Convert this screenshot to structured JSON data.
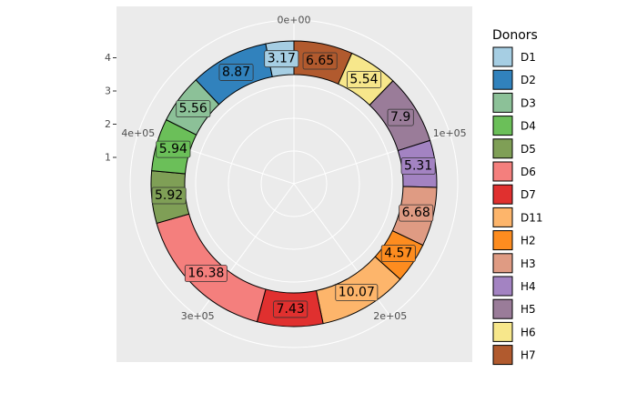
{
  "chart_data": {
    "type": "pie",
    "variant": "donut",
    "coord": "polar",
    "legend_title": "Donors",
    "legend_position": "right",
    "x_ticks": [
      "0e+00",
      "1e+05",
      "2e+05",
      "3e+05",
      "4e+05"
    ],
    "y_ticks": [
      "1",
      "2",
      "3",
      "4"
    ],
    "grid": true,
    "slices": [
      {
        "name": "D1",
        "value": 3.17,
        "label": "3.17",
        "color": "#A6CEE3"
      },
      {
        "name": "D2",
        "value": 8.87,
        "label": "8.87",
        "color": "#3182BD"
      },
      {
        "name": "D3",
        "value": 5.56,
        "label": "5.56",
        "color": "#8CC198"
      },
      {
        "name": "D4",
        "value": 5.94,
        "label": "5.94",
        "color": "#6BBF59"
      },
      {
        "name": "D5",
        "value": 5.92,
        "label": "5.92",
        "color": "#7F9F56"
      },
      {
        "name": "D6",
        "value": 16.38,
        "label": "16.38",
        "color": "#F47F7D"
      },
      {
        "name": "D7",
        "value": 7.43,
        "label": "7.43",
        "color": "#E0302F"
      },
      {
        "name": "D11",
        "value": 10.07,
        "label": "10.07",
        "color": "#FDB56B"
      },
      {
        "name": "H2",
        "value": 4.57,
        "label": "4.57",
        "color": "#FD8C1F"
      },
      {
        "name": "H3",
        "value": 6.68,
        "label": "6.68",
        "color": "#DF9B83"
      },
      {
        "name": "H4",
        "value": 5.31,
        "label": "5.31",
        "color": "#A383C2"
      },
      {
        "name": "H5",
        "value": 7.9,
        "label": "7.9",
        "color": "#9A7C99"
      },
      {
        "name": "H6",
        "value": 5.54,
        "label": "5.54",
        "color": "#F7E78B"
      },
      {
        "name": "H7",
        "value": 6.65,
        "label": "6.65",
        "color": "#B15A2E"
      }
    ],
    "clockwise_order": [
      "H7",
      "H6",
      "H5",
      "H4",
      "H3",
      "H2",
      "D11",
      "D7",
      "D6",
      "D5",
      "D4",
      "D3",
      "D2",
      "D1"
    ]
  }
}
